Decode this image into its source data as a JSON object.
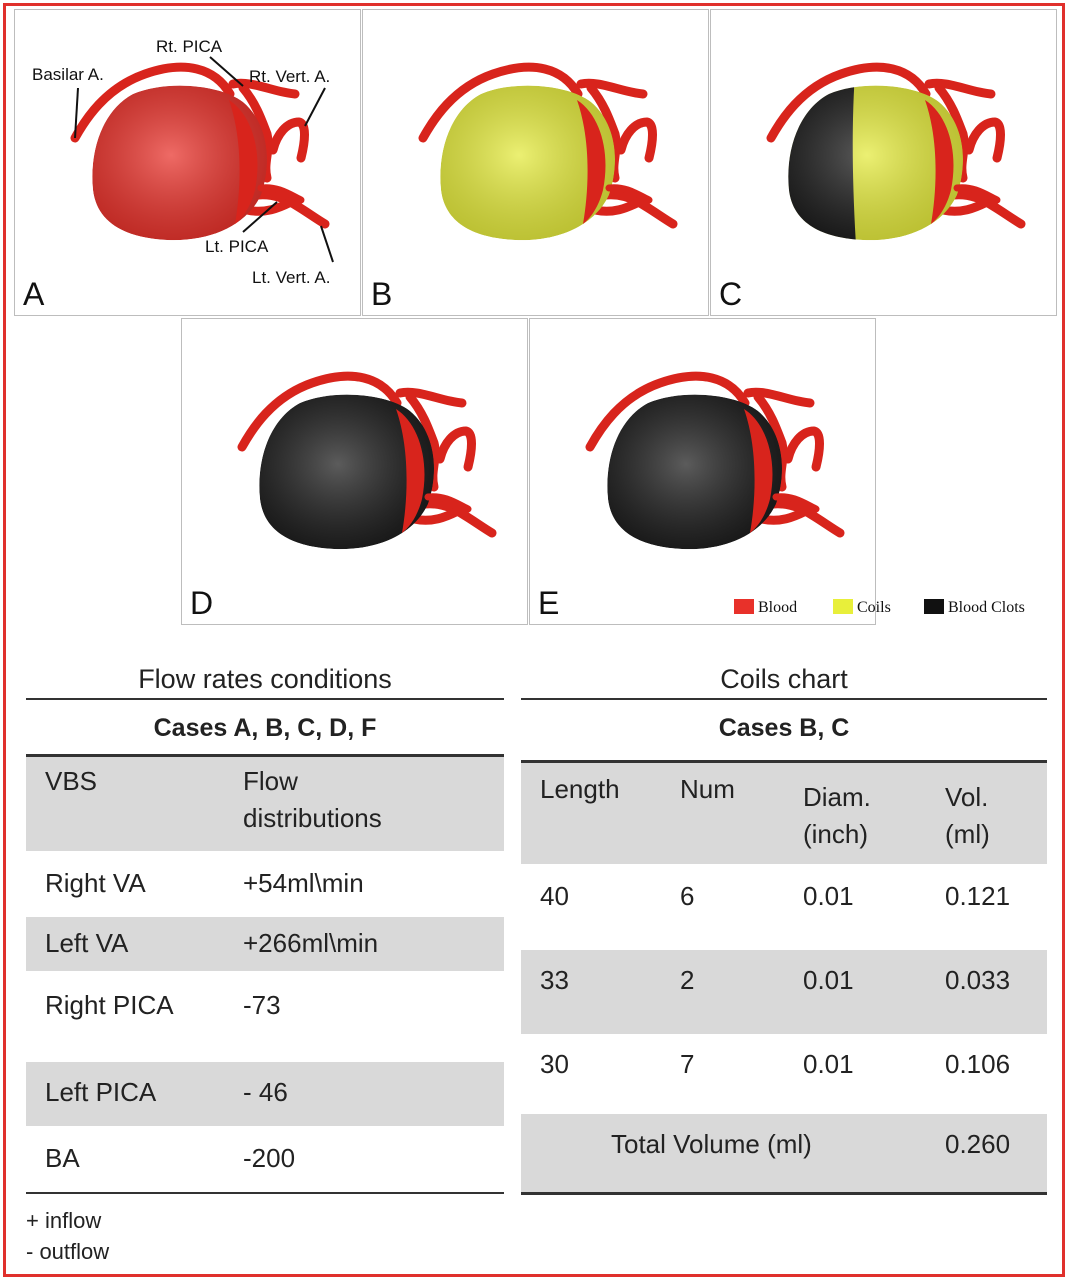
{
  "figure": {
    "panels": [
      {
        "letter": "A",
        "sac_fill": "blood"
      },
      {
        "letter": "B",
        "sac_fill": "coils"
      },
      {
        "letter": "C",
        "sac_fill": "coils+clots"
      },
      {
        "letter": "D",
        "sac_fill": "clots"
      },
      {
        "letter": "E",
        "sac_fill": "clots"
      }
    ],
    "anatomy_labels": {
      "basilar": "Basilar A.",
      "rt_pica": "Rt. PICA",
      "rt_vert": "Rt. Vert. A.",
      "lt_pica": "Lt. PICA",
      "lt_vert": "Lt. Vert. A."
    },
    "legend": [
      {
        "label": "Blood",
        "color": "#e8312a"
      },
      {
        "label": "Coils",
        "color": "#e8ef3a"
      },
      {
        "label": "Blood Clots",
        "color": "#111111"
      }
    ],
    "colors": {
      "border": "#e0302c",
      "vessel": "#d8241c",
      "blood": "#e8312a",
      "coils": "#e4ea3c",
      "clots": "#1c1c1c"
    }
  },
  "flow_table": {
    "title": "Flow rates conditions",
    "subtitle": "Cases A, B, C, D, F",
    "headers": [
      "VBS",
      "Flow distributions"
    ],
    "rows": [
      [
        "Right VA",
        "+54ml\\min"
      ],
      [
        "Left VA",
        "+266ml\\min"
      ],
      [
        "Right PICA",
        "-73"
      ],
      [
        "Left PICA",
        "- 46"
      ],
      [
        "BA",
        "-200"
      ]
    ],
    "notes": [
      "+ inflow",
      "- outflow"
    ]
  },
  "coils_table": {
    "title": "Coils chart",
    "subtitle": "Cases B, C",
    "headers": [
      "Length",
      "Num",
      "Diam. (inch)",
      "Vol. (ml)"
    ],
    "rows": [
      [
        "40",
        "6",
        "0.01",
        "0.121"
      ],
      [
        "33",
        "2",
        "0.01",
        "0.033"
      ],
      [
        "30",
        "7",
        "0.01",
        "0.106"
      ]
    ],
    "total_label": "Total Volume (ml)",
    "total_value": "0.260"
  }
}
